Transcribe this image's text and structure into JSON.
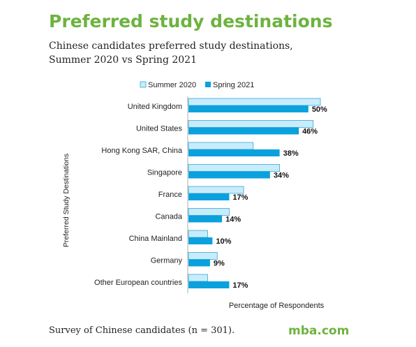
{
  "header": {
    "title": "Preferred study destinations",
    "subtitle_line1": "Chinese candidates preferred study destinations,",
    "subtitle_line2": "Summer 2020 vs Spring 2021"
  },
  "footer": {
    "note": "Survey of Chinese candidates (n = 301).",
    "brand": "mba.com"
  },
  "colors": {
    "title": "#6db33f",
    "summer_fill": "#c9ecfb",
    "summer_stroke": "#34a8d8",
    "spring_fill": "#0aa1dd"
  },
  "chart_data": {
    "type": "bar",
    "orientation": "horizontal",
    "ylabel": "Preferred Study Destinations",
    "xlabel": "Percentage of Respondents",
    "legend_position": "top",
    "xlim": [
      0,
      55
    ],
    "grid": false,
    "categories": [
      "United Kingdom",
      "United States",
      "Hong Kong SAR, China",
      "Singapore",
      "France",
      "Canada",
      "China Mainland",
      "Germany",
      "Other European countries"
    ],
    "series": [
      {
        "name": "Summer 2020",
        "values": [
          55,
          52,
          27,
          38,
          23,
          17,
          8,
          12,
          8
        ]
      },
      {
        "name": "Spring 2021",
        "values": [
          50,
          46,
          38,
          34,
          17,
          14,
          10,
          9,
          17
        ],
        "data_labels": [
          "50%",
          "46%",
          "38%",
          "34%",
          "17%",
          "14%",
          "10%",
          "9%",
          "17%"
        ]
      }
    ]
  }
}
